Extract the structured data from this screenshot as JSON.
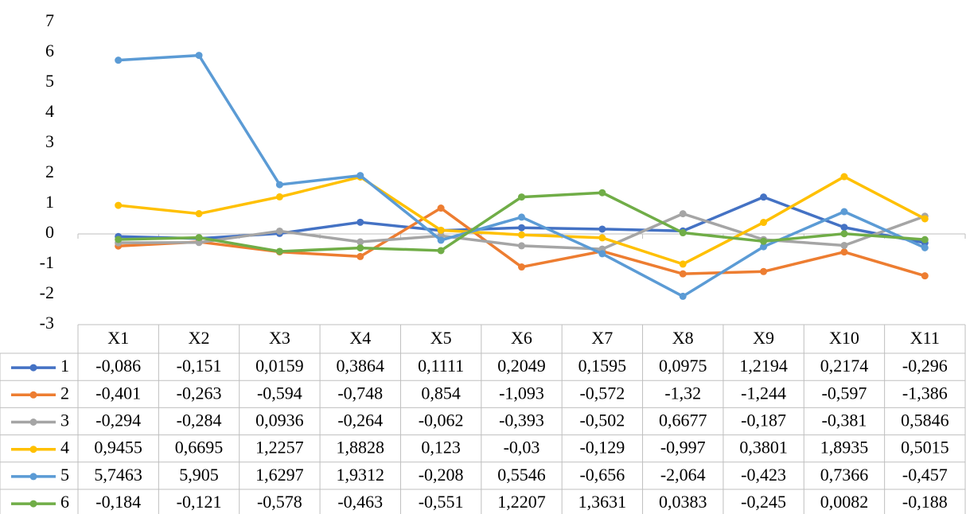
{
  "chart_data": {
    "type": "line",
    "categories": [
      "X1",
      "X2",
      "X3",
      "X4",
      "X5",
      "X6",
      "X7",
      "X8",
      "X9",
      "X10",
      "X11"
    ],
    "series": [
      {
        "name": "1",
        "color": "#4472c4",
        "values": [
          -0.086,
          -0.151,
          0.0159,
          0.3864,
          0.1111,
          0.2049,
          0.1595,
          0.0975,
          1.2194,
          0.2174,
          -0.296
        ],
        "value_labels": [
          "-0,086",
          "-0,151",
          "0,0159",
          "0,3864",
          "0,1111",
          "0,2049",
          "0,1595",
          "0,0975",
          "1,2194",
          "0,2174",
          "-0,296"
        ]
      },
      {
        "name": "2",
        "color": "#ed7d31",
        "values": [
          -0.401,
          -0.263,
          -0.594,
          -0.748,
          0.854,
          -1.093,
          -0.572,
          -1.32,
          -1.244,
          -0.597,
          -1.386
        ],
        "value_labels": [
          "-0,401",
          "-0,263",
          "-0,594",
          "-0,748",
          "0,854",
          "-1,093",
          "-0,572",
          "-1,32",
          "-1,244",
          "-0,597",
          "-1,386"
        ]
      },
      {
        "name": "3",
        "color": "#a5a5a5",
        "values": [
          -0.294,
          -0.284,
          0.0936,
          -0.264,
          -0.062,
          -0.393,
          -0.502,
          0.6677,
          -0.187,
          -0.381,
          0.5846
        ],
        "value_labels": [
          "-0,294",
          "-0,284",
          "0,0936",
          "-0,264",
          "-0,062",
          "-0,393",
          "-0,502",
          "0,6677",
          "-0,187",
          "-0,381",
          "0,5846"
        ]
      },
      {
        "name": "4",
        "color": "#ffc000",
        "values": [
          0.9455,
          0.6695,
          1.2257,
          1.8828,
          0.123,
          -0.03,
          -0.129,
          -0.997,
          0.3801,
          1.8935,
          0.5015
        ],
        "value_labels": [
          "0,9455",
          "0,6695",
          "1,2257",
          "1,8828",
          "0,123",
          "-0,03",
          "-0,129",
          "-0,997",
          "0,3801",
          "1,8935",
          "0,5015"
        ]
      },
      {
        "name": "5",
        "color": "#5b9bd5",
        "values": [
          5.7463,
          5.905,
          1.6297,
          1.9312,
          -0.208,
          0.5546,
          -0.656,
          -2.064,
          -0.423,
          0.7366,
          -0.457
        ],
        "value_labels": [
          "5,7463",
          "5,905",
          "1,6297",
          "1,9312",
          "-0,208",
          "0,5546",
          "-0,656",
          "-2,064",
          "-0,423",
          "0,7366",
          "-0,457"
        ]
      },
      {
        "name": "6",
        "color": "#70ad47",
        "values": [
          -0.184,
          -0.121,
          -0.578,
          -0.463,
          -0.551,
          1.2207,
          1.3631,
          0.0383,
          -0.245,
          0.0082,
          -0.188
        ],
        "value_labels": [
          "-0,184",
          "-0,121",
          "-0,578",
          "-0,463",
          "-0,551",
          "1,2207",
          "1,3631",
          "0,0383",
          "-0,245",
          "0,0082",
          "-0,188"
        ]
      }
    ],
    "ylim": [
      -3,
      7
    ],
    "yticks": [
      -3,
      -2,
      -1,
      0,
      1,
      2,
      3,
      4,
      5,
      6,
      7
    ],
    "grid": false
  }
}
